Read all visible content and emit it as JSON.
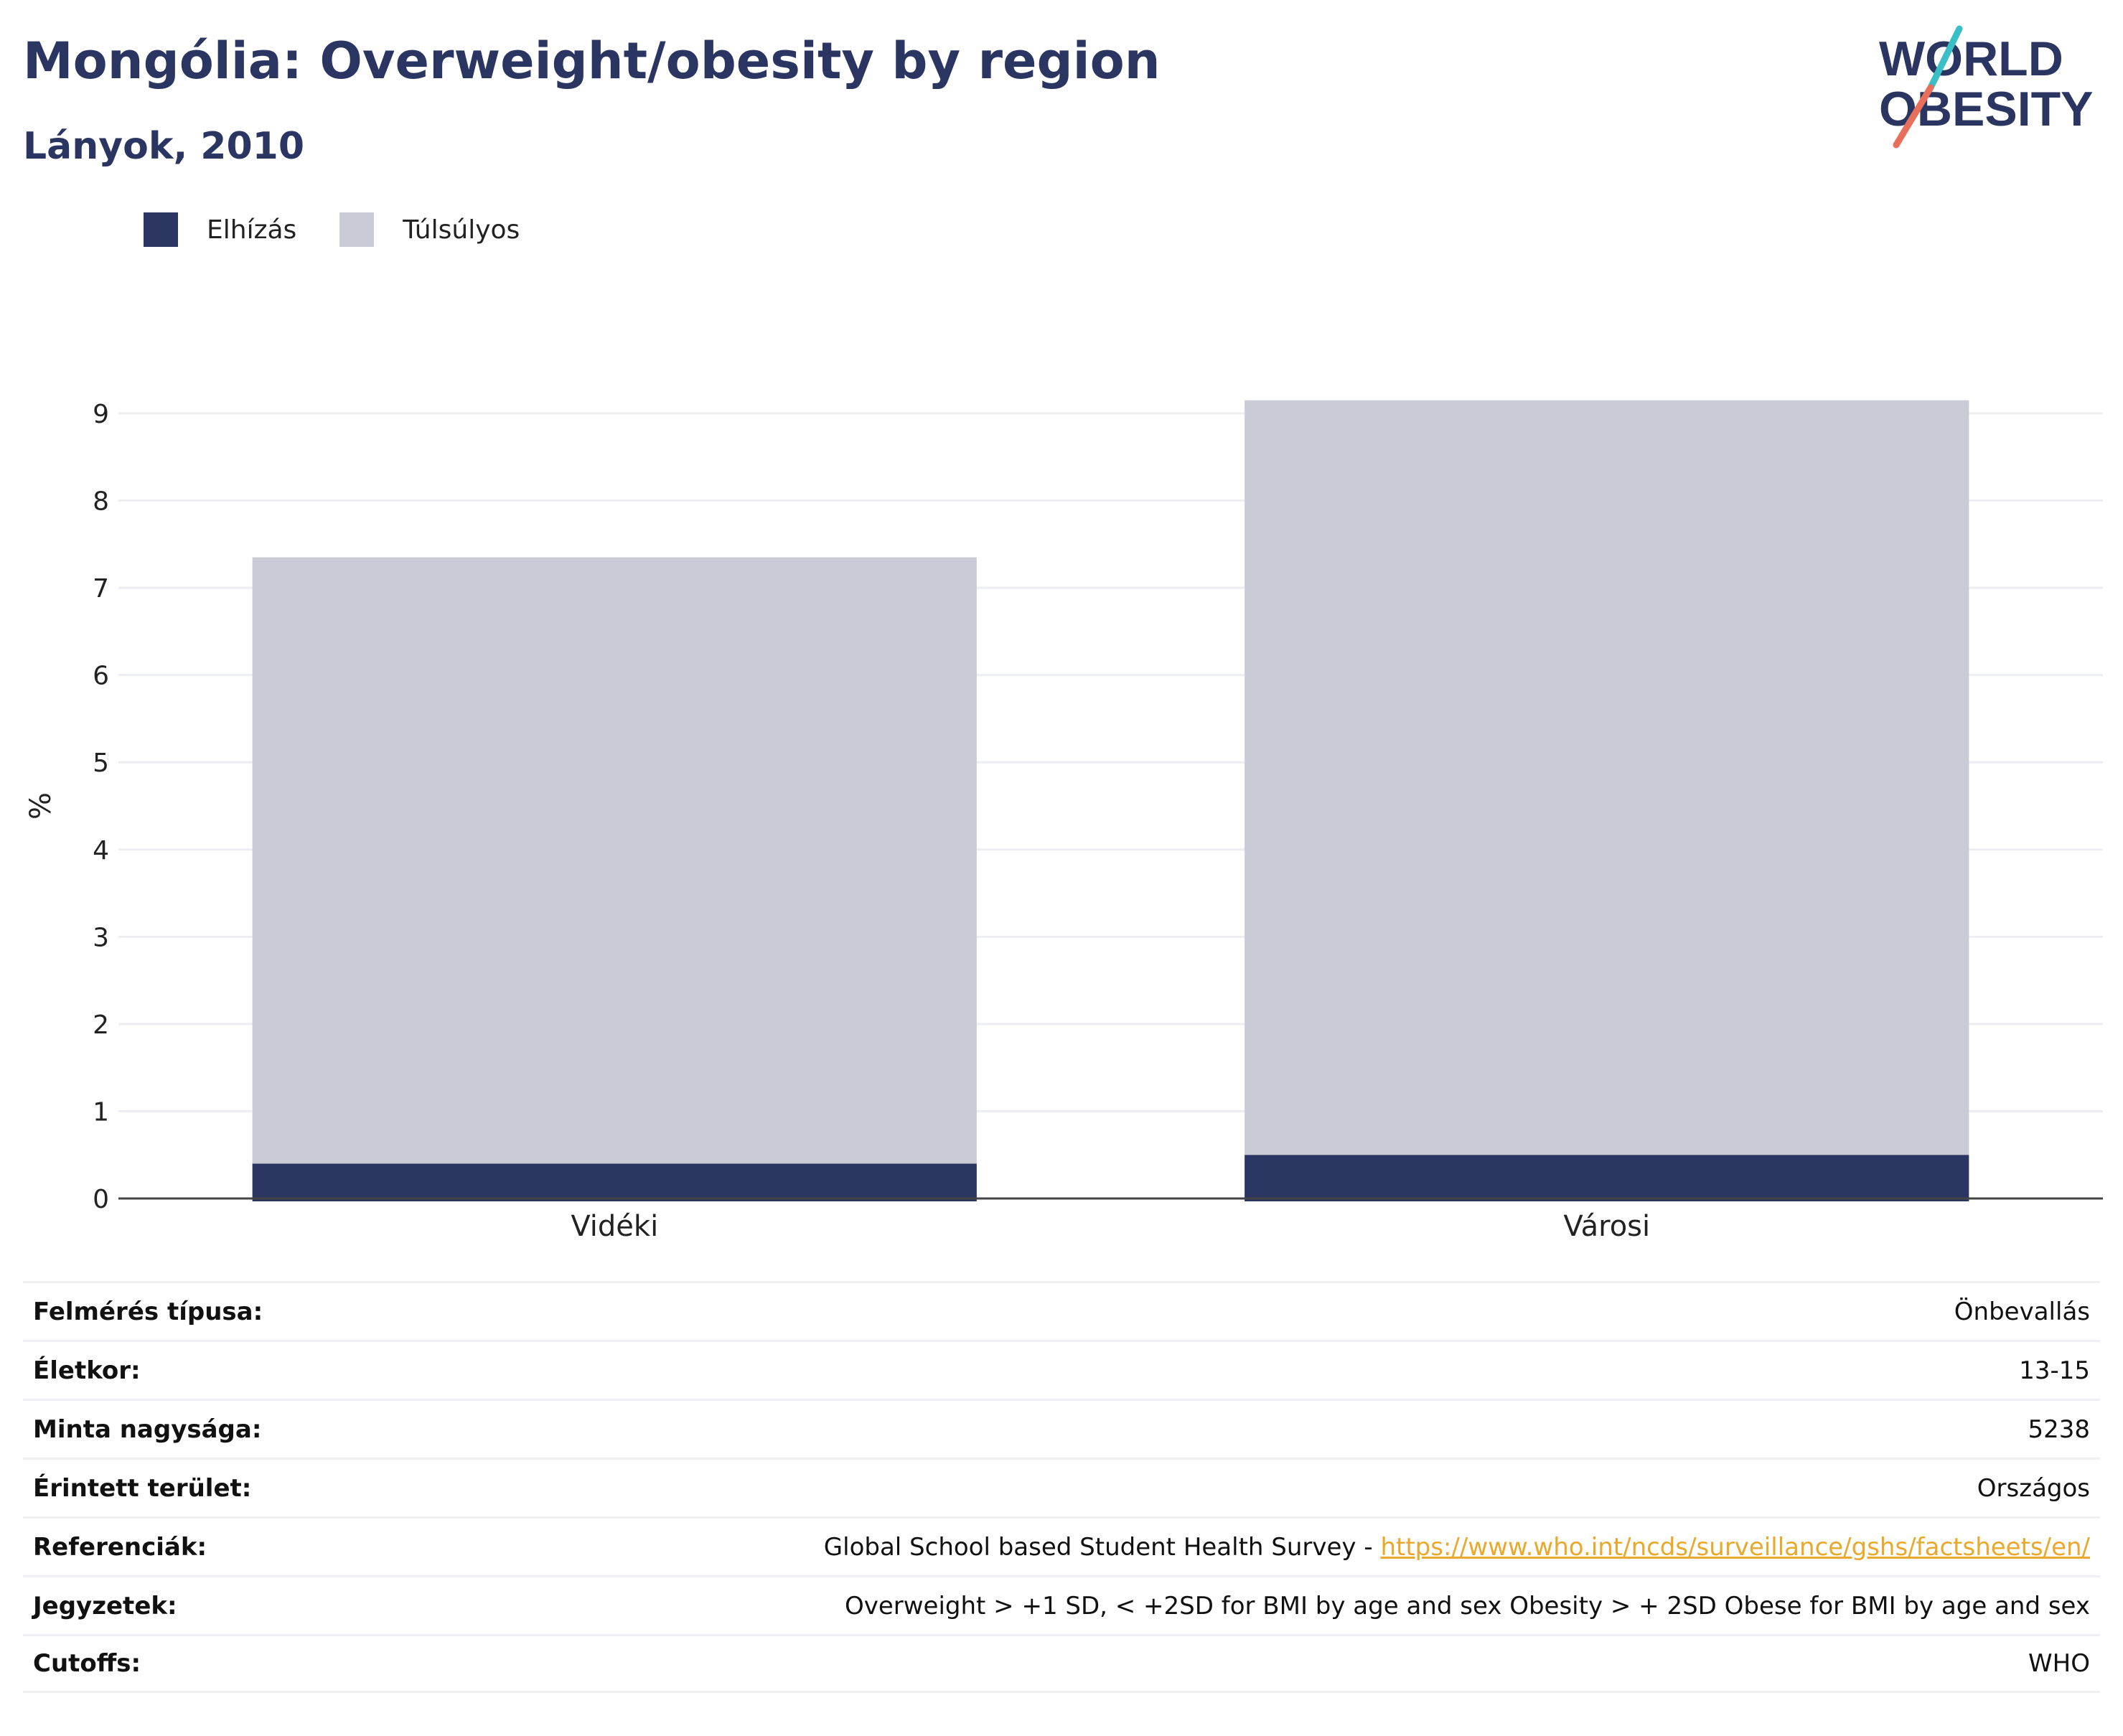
{
  "header": {
    "title": "Mongólia: Overweight/obesity by region",
    "subtitle": "Lányok, 2010"
  },
  "logo": {
    "line1": "WORLD",
    "line2": "OBESITY",
    "colors": {
      "text": "#2a3561",
      "slash_top": "#3bbfc6",
      "slash_bottom": "#e76f5c"
    }
  },
  "legend": [
    {
      "label": "Elhízás",
      "color": "#2a3561"
    },
    {
      "label": "Túlsúlyos",
      "color": "#c9cbd7"
    }
  ],
  "chart_data": {
    "type": "bar",
    "stacked": true,
    "categories": [
      "Vidéki",
      "Városi"
    ],
    "series": [
      {
        "name": "Elhízás",
        "color": "#2a3561",
        "values": [
          0.4,
          0.5
        ]
      },
      {
        "name": "Túlsúlyos",
        "color": "#c9cbd7",
        "values": [
          6.95,
          8.65
        ]
      }
    ],
    "ylabel": "%",
    "ylim": [
      0,
      9
    ],
    "yticks": [
      0,
      1,
      2,
      3,
      4,
      5,
      6,
      7,
      8,
      9
    ],
    "grid": true,
    "legend_position": "top-left"
  },
  "meta": [
    {
      "label": "Felmérés típusa:",
      "value": "Önbevallás"
    },
    {
      "label": "Életkor:",
      "value": "13-15"
    },
    {
      "label": "Minta nagysága:",
      "value": "5238"
    },
    {
      "label": "Érintett terület:",
      "value": "Országos"
    },
    {
      "label": "Referenciák:",
      "value": "Global School based Student Health Survey - ",
      "link": "https://www.who.int/ncds/surveillance/gshs/factsheets/en/"
    },
    {
      "label": "Jegyzetek:",
      "value": "Overweight > +1 SD, < +2SD for BMI by age and sex Obesity > + 2SD Obese for BMI by age and sex"
    },
    {
      "label": "Cutoffs:",
      "value": "WHO"
    }
  ]
}
